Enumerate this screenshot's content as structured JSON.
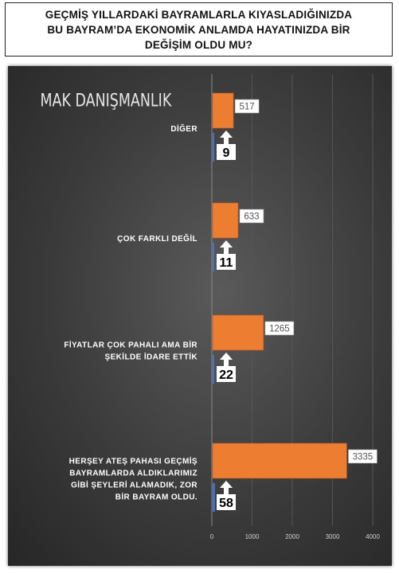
{
  "header": {
    "title_lines": [
      "GEÇMİŞ YILLARDAKİ BAYRAMLARLA KIYASLADIĞINIZDA",
      "BU BAYRAM’DA EKONOMİK ANLAMDA HAYATINIZDA BİR",
      "DEĞİŞİM OLDU MU?"
    ]
  },
  "watermark": "MAK DANIŞMANLIK",
  "colors": {
    "bar": "#ed7d31",
    "bar_small": "#4472c4",
    "background": "#3a3a3a"
  },
  "chart_data": {
    "type": "bar",
    "orientation": "horizontal",
    "categories": [
      [
        "DİĞER"
      ],
      [
        "ÇOK FARKLI DEĞİL"
      ],
      [
        "FİYATLAR ÇOK PAHALI AMA BİR",
        "ŞEKİLDE İDARE ETTİK"
      ],
      [
        "HERŞEY ATEŞ PAHASI GEÇMİŞ",
        "BAYRAMLARDA ALDIKLARIMIZ",
        "GİBİ ŞEYLERİ  ALAMADIK, ZOR",
        "BİR BAYRAM OLDU."
      ]
    ],
    "series": [
      {
        "values": [
          517,
          633,
          1265,
          3335
        ]
      },
      {
        "values": [
          9,
          11,
          22,
          58
        ]
      }
    ],
    "xlim": [
      0,
      4000
    ],
    "xticks": [
      "0",
      "1000",
      "2000",
      "3000",
      "4000"
    ],
    "grid": true
  }
}
